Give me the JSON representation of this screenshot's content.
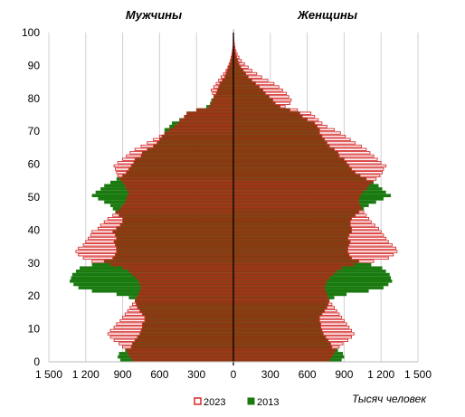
{
  "chart_data": {
    "type": "bar",
    "orientation": "horizontal",
    "layout": "population-pyramid",
    "left_title": "Мужчины",
    "right_title": "Женщины",
    "unit_label": "Тысяч человек",
    "y_ticks": [
      "0",
      "10",
      "20",
      "30",
      "40",
      "50",
      "60",
      "70",
      "80",
      "90",
      "100"
    ],
    "x_ticks": [
      "1 500",
      "1 200",
      "900",
      "600",
      "300",
      "0",
      "300",
      "600",
      "900",
      "1 200",
      "1 500"
    ],
    "ylim": [
      0,
      100
    ],
    "xlim": [
      -1500,
      1500
    ],
    "grid": "vertical",
    "legend_position": "bottom-center",
    "colors": {
      "outline_2023": "#d62b2b",
      "fill_2013": "#1a7a10",
      "overlap": "#8a3a12",
      "axis": "#000000"
    },
    "series": [
      {
        "name": "2013",
        "style": "filled",
        "male": [
          920,
          940,
          930,
          880,
          830,
          820,
          800,
          780,
          760,
          750,
          740,
          740,
          720,
          720,
          740,
          760,
          780,
          790,
          800,
          850,
          950,
          1150,
          1260,
          1300,
          1330,
          1320,
          1310,
          1280,
          1250,
          1150,
          1050,
          980,
          960,
          950,
          950,
          960,
          970,
          950,
          960,
          980,
          950,
          920,
          900,
          900,
          930,
          960,
          980,
          1000,
          1050,
          1100,
          1150,
          1120,
          1080,
          1050,
          1000,
          950,
          900,
          870,
          850,
          830,
          810,
          800,
          750,
          740,
          700,
          650,
          620,
          600,
          580,
          560,
          560,
          520,
          500,
          440,
          400,
          380,
          300,
          220,
          190,
          180,
          160,
          140,
          130,
          120,
          110,
          90,
          70,
          60,
          50,
          40,
          28,
          20,
          14,
          10,
          7,
          5,
          3,
          2,
          1,
          1,
          1
        ],
        "female": [
          880,
          900,
          890,
          850,
          800,
          790,
          770,
          750,
          730,
          720,
          710,
          710,
          700,
          700,
          720,
          740,
          760,
          770,
          780,
          820,
          920,
          1100,
          1220,
          1260,
          1290,
          1280,
          1270,
          1240,
          1210,
          1120,
          1020,
          960,
          940,
          930,
          930,
          940,
          950,
          930,
          940,
          960,
          960,
          950,
          950,
          960,
          990,
          1020,
          1060,
          1100,
          1160,
          1220,
          1280,
          1240,
          1210,
          1180,
          1140,
          1080,
          1030,
          990,
          960,
          940,
          920,
          900,
          860,
          850,
          820,
          780,
          760,
          740,
          720,
          700,
          700,
          680,
          660,
          600,
          560,
          540,
          460,
          380,
          340,
          320,
          290,
          260,
          240,
          210,
          180,
          150,
          120,
          100,
          80,
          60,
          45,
          35,
          25,
          18,
          12,
          8,
          5,
          3,
          2,
          1,
          1
        ]
      },
      {
        "name": "2023",
        "style": "outline",
        "male": [
          820,
          840,
          860,
          870,
          900,
          930,
          970,
          1000,
          1020,
          1000,
          970,
          950,
          920,
          900,
          880,
          860,
          840,
          820,
          800,
          790,
          770,
          760,
          750,
          760,
          770,
          790,
          820,
          850,
          900,
          1000,
          1150,
          1220,
          1260,
          1280,
          1260,
          1220,
          1200,
          1180,
          1160,
          1150,
          1100,
          1080,
          1050,
          1020,
          980,
          950,
          920,
          900,
          880,
          870,
          860,
          850,
          870,
          880,
          900,
          920,
          940,
          950,
          960,
          970,
          940,
          900,
          870,
          840,
          800,
          750,
          700,
          650,
          600,
          560,
          520,
          480,
          450,
          430,
          400,
          380,
          300,
          200,
          180,
          170,
          160,
          170,
          180,
          160,
          140,
          120,
          100,
          80,
          60,
          45,
          35,
          25,
          18,
          12,
          8,
          5,
          3,
          2,
          1,
          1,
          0
        ],
        "female": [
          780,
          800,
          820,
          830,
          860,
          890,
          930,
          960,
          980,
          960,
          940,
          920,
          900,
          880,
          860,
          840,
          820,
          800,
          780,
          770,
          760,
          750,
          740,
          750,
          760,
          780,
          810,
          840,
          880,
          980,
          1140,
          1260,
          1300,
          1330,
          1320,
          1290,
          1260,
          1240,
          1220,
          1200,
          1180,
          1150,
          1120,
          1100,
          1080,
          1060,
          1040,
          1030,
          1020,
          1020,
          1030,
          1050,
          1080,
          1100,
          1130,
          1160,
          1190,
          1210,
          1220,
          1240,
          1200,
          1170,
          1140,
          1110,
          1080,
          1040,
          990,
          950,
          910,
          870,
          820,
          760,
          720,
          690,
          660,
          630,
          520,
          420,
          460,
          470,
          450,
          430,
          400,
          370,
          330,
          280,
          230,
          190,
          150,
          120,
          90,
          65,
          45,
          30,
          20,
          12,
          8,
          5,
          3,
          2,
          1
        ]
      }
    ]
  }
}
